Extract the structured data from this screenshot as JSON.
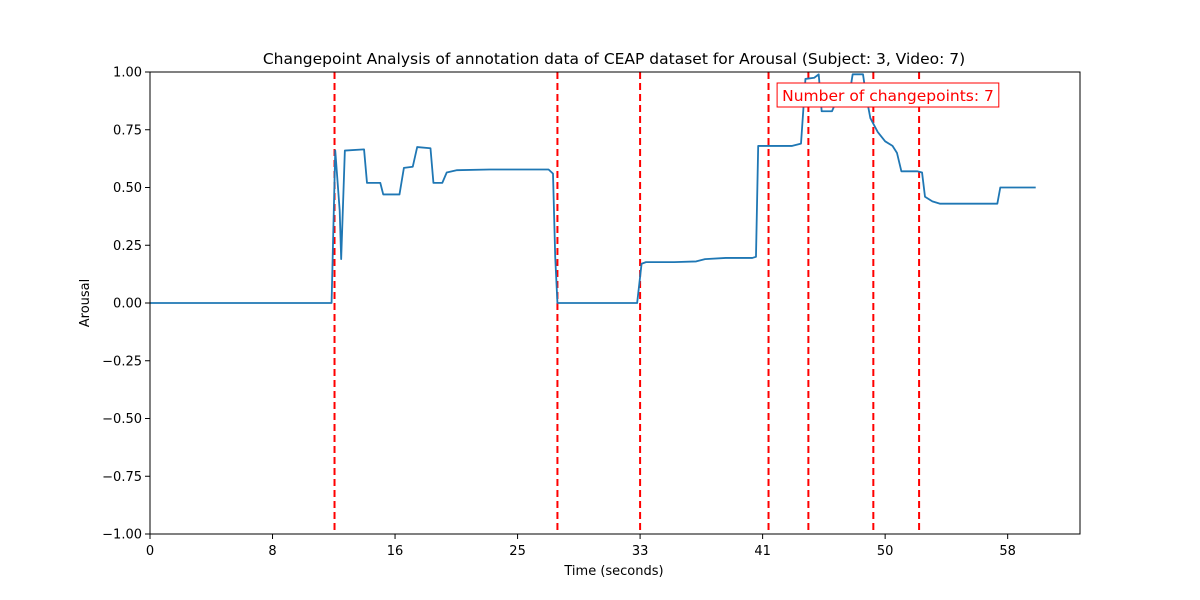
{
  "chart_data": {
    "type": "line",
    "title": "Changepoint Analysis of annotation data of CEAP dataset for Arousal (Subject: 3, Video: 7)",
    "xlabel": "Time (seconds)",
    "ylabel": "Arousal",
    "xlim": [
      0,
      63
    ],
    "ylim": [
      -1.0,
      1.0
    ],
    "x_ticks": [
      {
        "value": 0,
        "label": "0"
      },
      {
        "value": 8.3,
        "label": "8"
      },
      {
        "value": 16.6,
        "label": "16"
      },
      {
        "value": 24.9,
        "label": "25"
      },
      {
        "value": 33.2,
        "label": "33"
      },
      {
        "value": 41.5,
        "label": "41"
      },
      {
        "value": 49.8,
        "label": "50"
      },
      {
        "value": 58.1,
        "label": "58"
      }
    ],
    "y_ticks": [
      {
        "value": 1.0,
        "label": "1.00"
      },
      {
        "value": 0.75,
        "label": "0.75"
      },
      {
        "value": 0.5,
        "label": "0.50"
      },
      {
        "value": 0.25,
        "label": "0.25"
      },
      {
        "value": 0.0,
        "label": "0.00"
      },
      {
        "value": -0.25,
        "label": "−0.25"
      },
      {
        "value": -0.5,
        "label": "−0.50"
      },
      {
        "value": -0.75,
        "label": "−0.75"
      },
      {
        "value": -1.0,
        "label": "−1.00"
      }
    ],
    "grid": false,
    "series": [
      {
        "color": "#1f77b4",
        "points": [
          [
            0,
            0.0
          ],
          [
            12.3,
            0.0
          ],
          [
            12.55,
            0.66
          ],
          [
            12.85,
            0.4
          ],
          [
            12.95,
            0.19
          ],
          [
            13.2,
            0.66
          ],
          [
            14.5,
            0.665
          ],
          [
            14.7,
            0.52
          ],
          [
            15.6,
            0.52
          ],
          [
            15.8,
            0.47
          ],
          [
            16.9,
            0.47
          ],
          [
            17.2,
            0.585
          ],
          [
            17.8,
            0.59
          ],
          [
            18.1,
            0.675
          ],
          [
            19.0,
            0.67
          ],
          [
            19.2,
            0.52
          ],
          [
            19.8,
            0.52
          ],
          [
            20.1,
            0.565
          ],
          [
            20.8,
            0.575
          ],
          [
            23.0,
            0.578
          ],
          [
            25.0,
            0.578
          ],
          [
            27.0,
            0.578
          ],
          [
            27.3,
            0.56
          ],
          [
            27.45,
            0.2
          ],
          [
            27.6,
            0.0
          ],
          [
            33.0,
            0.0
          ],
          [
            33.3,
            0.17
          ],
          [
            33.6,
            0.177
          ],
          [
            35.5,
            0.177
          ],
          [
            37.0,
            0.18
          ],
          [
            37.6,
            0.19
          ],
          [
            39.0,
            0.195
          ],
          [
            40.8,
            0.195
          ],
          [
            41.05,
            0.2
          ],
          [
            41.2,
            0.68
          ],
          [
            42.0,
            0.68
          ],
          [
            43.5,
            0.68
          ],
          [
            44.1,
            0.69
          ],
          [
            44.4,
            0.97
          ],
          [
            45.0,
            0.975
          ],
          [
            45.3,
            0.99
          ],
          [
            45.5,
            0.83
          ],
          [
            46.2,
            0.83
          ],
          [
            46.4,
            0.86
          ],
          [
            47.3,
            0.87
          ],
          [
            47.6,
            0.99
          ],
          [
            48.3,
            0.99
          ],
          [
            48.5,
            0.9
          ],
          [
            48.8,
            0.8
          ],
          [
            49.3,
            0.74
          ],
          [
            49.8,
            0.7
          ],
          [
            50.3,
            0.68
          ],
          [
            50.6,
            0.65
          ],
          [
            50.9,
            0.57
          ],
          [
            52.0,
            0.57
          ],
          [
            52.3,
            0.565
          ],
          [
            52.5,
            0.46
          ],
          [
            53.0,
            0.44
          ],
          [
            53.5,
            0.43
          ],
          [
            57.0,
            0.43
          ],
          [
            57.4,
            0.43
          ],
          [
            57.6,
            0.5
          ],
          [
            60.0,
            0.5
          ]
        ]
      }
    ],
    "changepoints": [
      12.5,
      27.6,
      33.2,
      41.9,
      44.6,
      49.0,
      52.1
    ],
    "changepoint_color": "#ff0000",
    "annotation": {
      "text": "Number of changepoints: 7",
      "color": "#ff0000",
      "placement": "top-right"
    }
  }
}
